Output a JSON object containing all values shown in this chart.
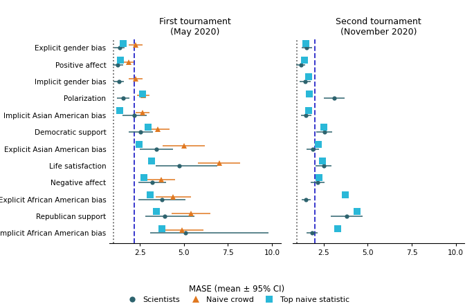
{
  "categories": [
    "Explicit gender bias",
    "Positive affect",
    "Implicit gender bias",
    "Polarization",
    "Implicit Asian American bias",
    "Democratic support",
    "Explicit Asian American bias",
    "Life satisfaction",
    "Negative affect",
    "Explicit African American bias",
    "Republican support",
    "Implicit African American bias"
  ],
  "tournament1": {
    "title": "First tournament\n(May 2020)",
    "dotted_line": 1.0,
    "dashed_line": 2.2,
    "scientists": {
      "vals": [
        1.35,
        1.25,
        1.3,
        1.55,
        2.2,
        2.55,
        3.45,
        4.75,
        3.2,
        3.75,
        3.9,
        5.1
      ],
      "ci_lo": [
        1.05,
        0.95,
        1.0,
        1.2,
        1.5,
        1.85,
        2.5,
        3.4,
        2.4,
        2.4,
        2.8,
        3.1
      ],
      "ci_hi": [
        1.65,
        1.55,
        1.6,
        1.9,
        2.9,
        3.25,
        4.4,
        6.9,
        4.0,
        5.1,
        5.6,
        9.8
      ]
    },
    "naive_crowd": {
      "vals": [
        2.25,
        1.85,
        2.25,
        2.7,
        2.65,
        3.5,
        5.0,
        7.0,
        3.7,
        4.4,
        5.4,
        4.9
      ],
      "ci_lo": [
        1.85,
        1.55,
        1.85,
        2.35,
        2.25,
        2.8,
        3.8,
        5.8,
        2.9,
        3.4,
        4.3,
        3.7
      ],
      "ci_hi": [
        2.65,
        2.15,
        2.65,
        3.05,
        3.05,
        4.2,
        6.2,
        8.2,
        4.5,
        5.4,
        6.5,
        6.1
      ]
    },
    "top_naive": {
      "vals": [
        1.55,
        1.4,
        null,
        2.65,
        1.35,
        2.95,
        2.45,
        3.15,
        2.75,
        3.1,
        3.45,
        3.75
      ]
    }
  },
  "tournament2": {
    "title": "Second tournament\n(November 2020)",
    "dotted_line": 1.0,
    "dashed_line": 2.0,
    "scientists": {
      "vals": [
        1.55,
        1.2,
        1.45,
        3.1,
        1.5,
        2.55,
        1.9,
        2.5,
        2.15,
        1.5,
        3.8,
        1.85
      ],
      "ci_lo": [
        1.25,
        0.95,
        1.15,
        2.5,
        1.2,
        2.1,
        1.55,
        2.05,
        1.75,
        1.25,
        2.9,
        1.55
      ],
      "ci_hi": [
        1.85,
        1.45,
        1.75,
        3.7,
        1.8,
        3.0,
        2.25,
        2.95,
        2.55,
        1.75,
        4.7,
        2.15
      ]
    },
    "top_naive": {
      "vals": [
        1.5,
        1.4,
        1.65,
        1.7,
        1.65,
        2.5,
        2.2,
        2.45,
        2.25,
        3.75,
        4.4,
        3.3
      ]
    }
  },
  "colors": {
    "scientists": "#2d636e",
    "naive_crowd": "#e07820",
    "top_naive": "#2ab8d8",
    "dotted_line": "#666666",
    "dashed_line": "#3535cc"
  },
  "xlabel": "MASE (mean ± 95% CI)"
}
